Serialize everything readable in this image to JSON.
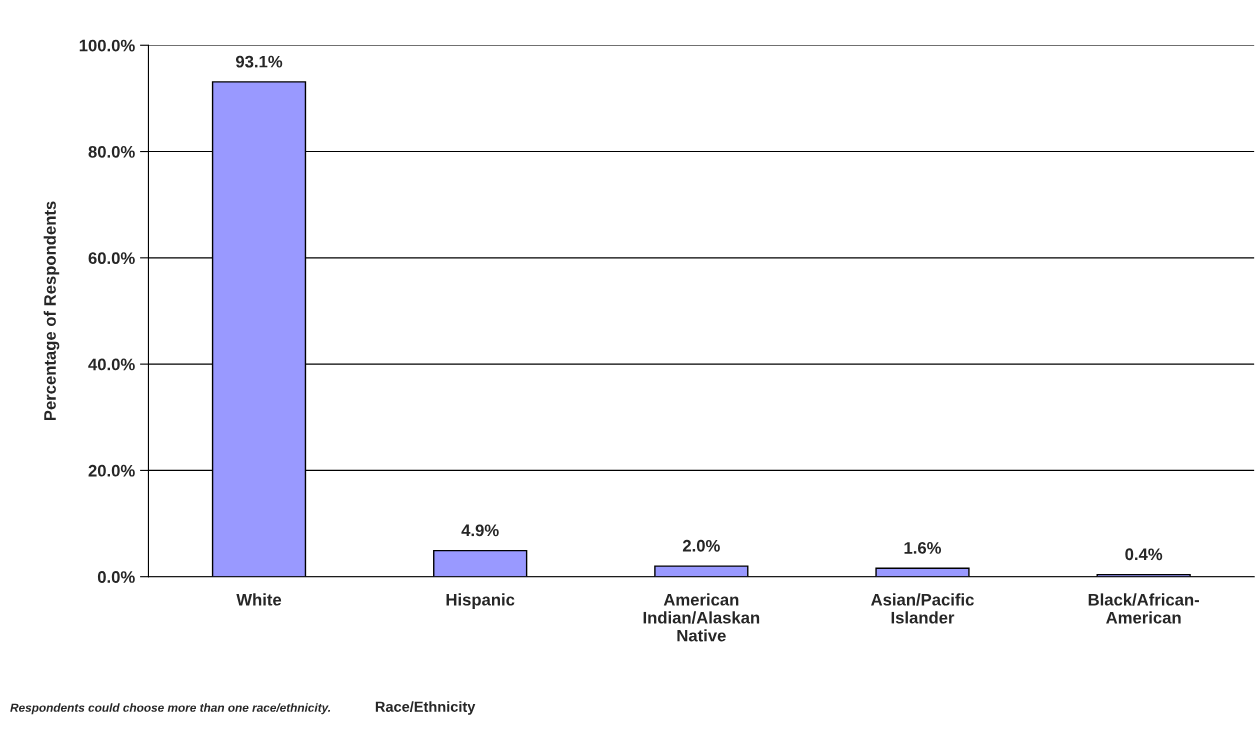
{
  "chart_data": {
    "type": "bar",
    "ylabel": "Percentage of Respondents",
    "xlabel": "Race/Ethnicity",
    "categories": [
      "White",
      "Hispanic",
      "American Indian/Alaskan Native",
      "Asian/Pacific Islander",
      "Black/African-American"
    ],
    "values": [
      93.1,
      4.9,
      2.0,
      1.6,
      0.4
    ],
    "value_labels": [
      "93.1%",
      "4.9%",
      "2.0%",
      "1.6%",
      "0.4%"
    ],
    "color": "#9999ff",
    "ylim": [
      0,
      100
    ],
    "yticks": [
      {
        "value": 0,
        "label": "0.0%"
      },
      {
        "value": 20,
        "label": "20.0%"
      },
      {
        "value": 40,
        "label": "40.0%"
      },
      {
        "value": 60,
        "label": "60.0%"
      },
      {
        "value": 80,
        "label": "80.0%"
      },
      {
        "value": 100,
        "label": "100.0%"
      }
    ],
    "grid": "y",
    "annotations": [
      "Respondents could choose more than one race/ethnicity."
    ]
  }
}
